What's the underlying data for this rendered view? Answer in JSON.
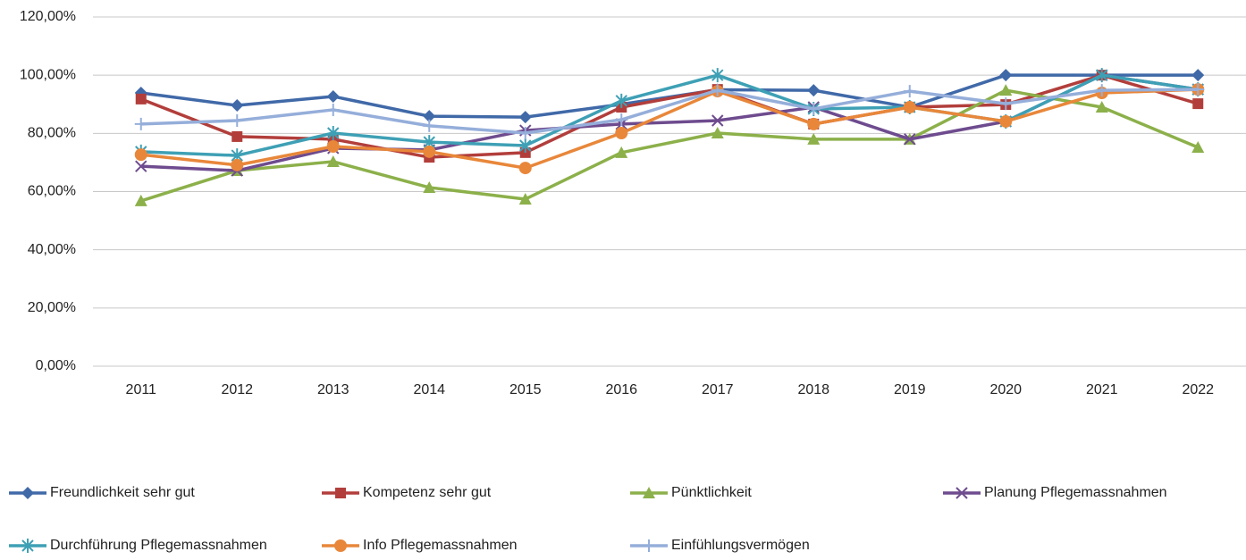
{
  "chart_data": {
    "type": "line",
    "categories": [
      "2011",
      "2012",
      "2013",
      "2014",
      "2015",
      "2016",
      "2017",
      "2018",
      "2019",
      "2020",
      "2021",
      "2022"
    ],
    "ylim": [
      0,
      120
    ],
    "yticks": [
      {
        "value": 0,
        "label": "0,00%"
      },
      {
        "value": 20,
        "label": "20,00%"
      },
      {
        "value": 40,
        "label": "40,00%"
      },
      {
        "value": 60,
        "label": "60,00%"
      },
      {
        "value": 80,
        "label": "80,00%"
      },
      {
        "value": 100,
        "label": "100,00%"
      },
      {
        "value": 120,
        "label": "120,00%"
      }
    ],
    "grid": true,
    "legend": "bottom",
    "series": [
      {
        "name": "Freundlichkeit sehr gut",
        "color": "#4069a8",
        "marker": "diamond",
        "values": [
          93.9,
          89.6,
          92.7,
          85.9,
          85.6,
          90,
          95,
          94.8,
          89,
          100,
          100,
          100
        ]
      },
      {
        "name": "Kompetenz sehr gut",
        "color": "#b23e3b",
        "marker": "square",
        "values": [
          91.8,
          78.9,
          78,
          71.8,
          73.4,
          89,
          95.1,
          83.2,
          89,
          89.9,
          100,
          90.2
        ]
      },
      {
        "name": "Pünktlichkeit",
        "color": "#8cb04a",
        "marker": "triangle",
        "values": [
          56.8,
          67.2,
          70.3,
          61.4,
          57.4,
          73.4,
          80.1,
          78,
          78,
          94.8,
          89,
          75.2
        ]
      },
      {
        "name": "Planung Pflegemassnahmen",
        "color": "#6e4b8e",
        "marker": "x",
        "values": [
          68.7,
          67.2,
          74.9,
          74.3,
          81,
          83.2,
          84.4,
          89,
          78,
          84.1,
          100,
          95.1
        ]
      },
      {
        "name": "Durchführung Pflegemassnahmen",
        "color": "#3ea0b5",
        "marker": "star",
        "values": [
          73.7,
          72.4,
          80.1,
          77,
          75.8,
          91.2,
          100,
          88.4,
          89,
          84.1,
          100,
          95.1
        ]
      },
      {
        "name": "Info Pflegemassnahmen",
        "color": "#e8873a",
        "marker": "circle",
        "values": [
          72.7,
          69.1,
          75.5,
          73.7,
          68.1,
          80.1,
          94.5,
          83.2,
          89,
          84.1,
          93.9,
          95.1
        ]
      },
      {
        "name": "Einfühlungsvermögen",
        "color": "#95aeda",
        "marker": "plus",
        "values": [
          83.2,
          84.4,
          88.1,
          82.6,
          80.1,
          84.7,
          94.8,
          88.4,
          94.5,
          90.2,
          94.8,
          95.1
        ]
      }
    ]
  }
}
